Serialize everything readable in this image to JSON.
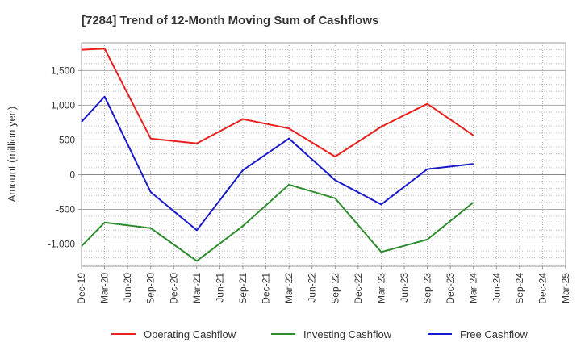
{
  "chart_data": {
    "type": "line",
    "title": "[7284]  Trend of 12-Month Moving Sum of Cashflows",
    "xlabel": "",
    "ylabel": "Amount (million yen)",
    "categories": [
      "Dec-19",
      "Mar-20",
      "Jun-20",
      "Sep-20",
      "Dec-20",
      "Mar-21",
      "Jun-21",
      "Sep-21",
      "Dec-21",
      "Mar-22",
      "Jun-22",
      "Sep-22",
      "Dec-22",
      "Mar-23",
      "Jun-23",
      "Sep-23",
      "Dec-23",
      "Mar-24",
      "Jun-24",
      "Sep-24",
      "Dec-24",
      "Mar-25"
    ],
    "yticks": [
      -1000,
      -500,
      0,
      500,
      1000,
      1500
    ],
    "ytick_labels": [
      "-1,000",
      "-500",
      "0",
      "500",
      "1,000",
      "1,500"
    ],
    "ylim": [
      -1320,
      1900
    ],
    "grid": true,
    "legend_position": "bottom",
    "series": [
      {
        "name": "Operating Cashflow",
        "color": "#e8201e",
        "values": [
          1800,
          1815,
          null,
          520,
          null,
          450,
          null,
          800,
          null,
          665,
          null,
          260,
          null,
          690,
          null,
          1020,
          null,
          565,
          null,
          null,
          null,
          null
        ]
      },
      {
        "name": "Investing Cashflow",
        "color": "#2e8b2e",
        "values": [
          -1030,
          -690,
          null,
          -770,
          null,
          -1245,
          null,
          -740,
          null,
          -145,
          null,
          -340,
          null,
          -1115,
          null,
          -935,
          null,
          -400,
          null,
          null,
          null,
          null
        ]
      },
      {
        "name": "Free Cashflow",
        "color": "#1a1acc",
        "values": [
          760,
          1125,
          null,
          -250,
          null,
          -800,
          null,
          65,
          null,
          520,
          null,
          -80,
          null,
          -430,
          null,
          80,
          null,
          155,
          null,
          null,
          null,
          null
        ]
      }
    ]
  }
}
